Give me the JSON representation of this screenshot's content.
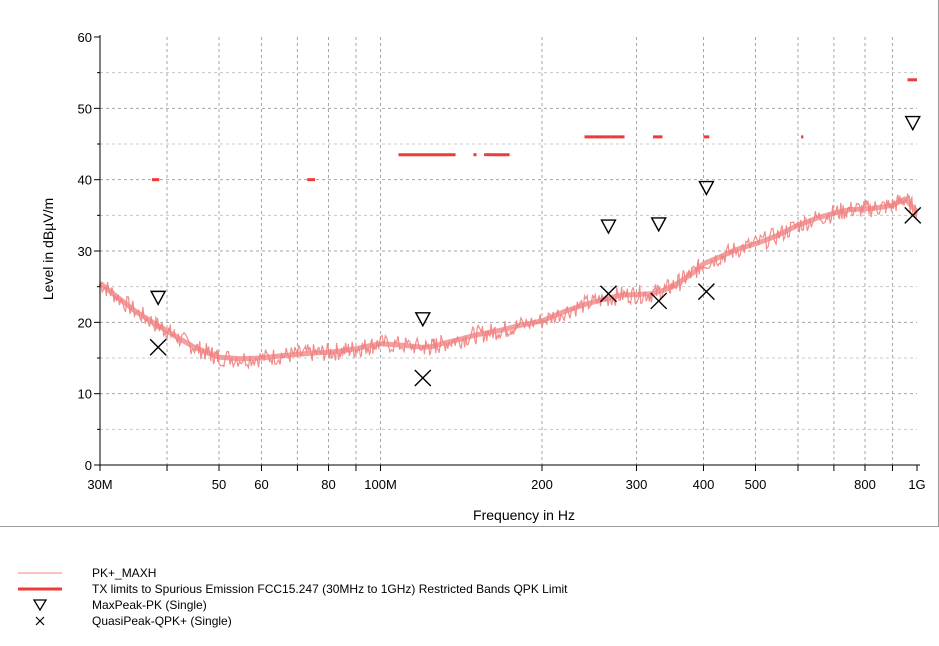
{
  "chart_data": {
    "type": "line",
    "title": "",
    "xlabel": "Frequency in Hz",
    "ylabel": "Level in dBµV/m",
    "xscale": "log",
    "xlim": [
      30000000,
      1000000000
    ],
    "ylim": [
      0,
      60
    ],
    "grid": true,
    "x_ticks": [
      {
        "value": 30000000,
        "label": "30M"
      },
      {
        "value": 50000000,
        "label": "50"
      },
      {
        "value": 60000000,
        "label": "60"
      },
      {
        "value": 80000000,
        "label": "80"
      },
      {
        "value": 100000000,
        "label": "100M"
      },
      {
        "value": 200000000,
        "label": "200"
      },
      {
        "value": 300000000,
        "label": "300"
      },
      {
        "value": 400000000,
        "label": "400"
      },
      {
        "value": 500000000,
        "label": "500"
      },
      {
        "value": 800000000,
        "label": "800"
      },
      {
        "value": 1000000000,
        "label": "1G"
      }
    ],
    "x_minor_ticks": [
      40000000,
      70000000,
      90000000,
      600000000,
      700000000,
      900000000
    ],
    "y_ticks": [
      {
        "value": 0,
        "label": "0"
      },
      {
        "value": 10,
        "label": "10"
      },
      {
        "value": 20,
        "label": "20"
      },
      {
        "value": 30,
        "label": "30"
      },
      {
        "value": 40,
        "label": "40"
      },
      {
        "value": 50,
        "label": "50"
      },
      {
        "value": 60,
        "label": "60"
      }
    ],
    "series": [
      {
        "name": "PK+_MAXH",
        "kind": "trace",
        "color": "#f08080",
        "x": [
          30000000,
          32000000,
          35000000,
          38000000,
          40000000,
          42000000,
          45000000,
          48000000,
          50000000,
          55000000,
          60000000,
          65000000,
          70000000,
          75000000,
          80000000,
          85000000,
          90000000,
          95000000,
          100000000,
          110000000,
          120000000,
          125000000,
          130000000,
          140000000,
          150000000,
          160000000,
          170000000,
          180000000,
          200000000,
          220000000,
          240000000,
          260000000,
          280000000,
          300000000,
          320000000,
          340000000,
          360000000,
          380000000,
          400000000,
          430000000,
          460000000,
          500000000,
          550000000,
          600000000,
          650000000,
          700000000,
          750000000,
          800000000,
          850000000,
          900000000,
          950000000,
          1000000000
        ],
        "values": [
          25.5,
          23.8,
          21.5,
          19.8,
          18.8,
          17.8,
          16.5,
          15.6,
          15.1,
          14.9,
          15.0,
          15.3,
          15.5,
          15.7,
          15.8,
          16.0,
          16.3,
          16.7,
          17.0,
          16.8,
          16.5,
          16.6,
          17.0,
          17.6,
          18.2,
          18.6,
          19.0,
          19.5,
          20.2,
          21.5,
          22.5,
          23.2,
          23.8,
          23.9,
          24.0,
          24.6,
          25.6,
          26.8,
          28.2,
          29.2,
          30.2,
          31.0,
          32.2,
          33.6,
          34.6,
          35.3,
          35.8,
          35.9,
          36.1,
          36.4,
          37.3,
          35.5
        ]
      },
      {
        "name": "TX limits to Spurious Emission FCC15.247 (30MHz to 1GHz) Restricted Bands QPK Limit",
        "kind": "limit",
        "color": "#f03a3a",
        "segments": [
          {
            "x": [
              37500000,
              38700000
            ],
            "y": 40.0
          },
          {
            "x": [
              73000000,
              75500000
            ],
            "y": 40.0
          },
          {
            "x": [
              108000000,
              138000000
            ],
            "y": 43.5
          },
          {
            "x": [
              149000000,
              151000000
            ],
            "y": 43.5
          },
          {
            "x": [
              156000000,
              162000000
            ],
            "y": 43.5
          },
          {
            "x": [
              162000000,
              174000000
            ],
            "y": 43.5
          },
          {
            "x": [
              240000000,
              285000000
            ],
            "y": 46.0
          },
          {
            "x": [
              322000000,
              335400000
            ],
            "y": 46.0
          },
          {
            "x": [
              399900000,
              410000000
            ],
            "y": 46.0
          },
          {
            "x": [
              608000000,
              614000000
            ],
            "y": 46.0
          },
          {
            "x": [
              960000000,
              1000000000
            ],
            "y": 54.0
          }
        ]
      },
      {
        "name": "MaxPeak-PK (Single)",
        "kind": "marker",
        "marker": "triangle-down",
        "color": "#000000",
        "x": [
          38500000,
          119900000,
          266000000,
          330000000,
          405000000,
          982000000
        ],
        "values": [
          23.5,
          20.5,
          33.5,
          33.8,
          38.9,
          48.0
        ]
      },
      {
        "name": "QuasiPeak-QPK+ (Single)",
        "kind": "marker",
        "marker": "x",
        "color": "#000000",
        "x": [
          38500000,
          119900000,
          266000000,
          330000000,
          405000000,
          982000000
        ],
        "values": [
          16.5,
          12.2,
          24.0,
          23.0,
          24.3,
          35.0
        ]
      }
    ]
  },
  "legend": [
    {
      "label": "PK+_MAXH",
      "symbol": "thin-line",
      "color": "#f08080"
    },
    {
      "label": "TX limits to Spurious Emission FCC15.247 (30MHz to 1GHz) Restricted Bands QPK Limit",
      "symbol": "thick-line",
      "color": "#f03a3a"
    },
    {
      "label": "MaxPeak-PK (Single)",
      "symbol": "triangle-down",
      "color": "#000000"
    },
    {
      "label": "QuasiPeak-QPK+ (Single)",
      "symbol": "x",
      "color": "#000000"
    }
  ]
}
